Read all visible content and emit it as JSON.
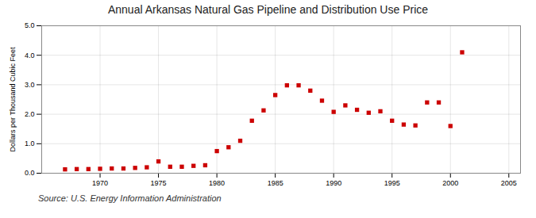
{
  "chart_data": {
    "type": "scatter",
    "title": "Annual Arkansas Natural Gas Pipeline and Distribution Use Price",
    "ylabel": "Dollars per Thousand Cubic Feet",
    "annotations": [
      "Source: U.S. Energy Information Administration"
    ],
    "x": [
      1967,
      1968,
      1969,
      1970,
      1971,
      1972,
      1973,
      1974,
      1975,
      1976,
      1977,
      1978,
      1979,
      1980,
      1981,
      1982,
      1983,
      1984,
      1985,
      1986,
      1987,
      1988,
      1989,
      1990,
      1991,
      1992,
      1993,
      1994,
      1995,
      1996,
      1997,
      1998,
      1999,
      2000,
      2001
    ],
    "values": [
      0.13,
      0.14,
      0.14,
      0.15,
      0.16,
      0.16,
      0.18,
      0.2,
      0.4,
      0.22,
      0.22,
      0.25,
      0.27,
      0.75,
      0.88,
      1.1,
      1.78,
      2.13,
      2.65,
      2.98,
      2.98,
      2.8,
      2.46,
      2.08,
      2.3,
      2.15,
      2.05,
      2.1,
      1.78,
      1.65,
      1.62,
      2.4,
      2.4,
      1.6,
      4.1
    ],
    "color": "#cc0000",
    "marker": "square",
    "xlim": [
      1965,
      2006
    ],
    "ylim": [
      0.0,
      5.0
    ],
    "xticks": [
      1970,
      1975,
      1980,
      1985,
      1990,
      1995,
      2000,
      2005
    ],
    "yticks": [
      {
        "value": 0,
        "label": "0.0"
      },
      {
        "value": 1,
        "label": "1.0"
      },
      {
        "value": 2,
        "label": "2.0"
      },
      {
        "value": 3,
        "label": "3.0"
      },
      {
        "value": 4,
        "label": "4.0"
      },
      {
        "value": 5,
        "label": "5.0"
      }
    ],
    "grid": true
  }
}
